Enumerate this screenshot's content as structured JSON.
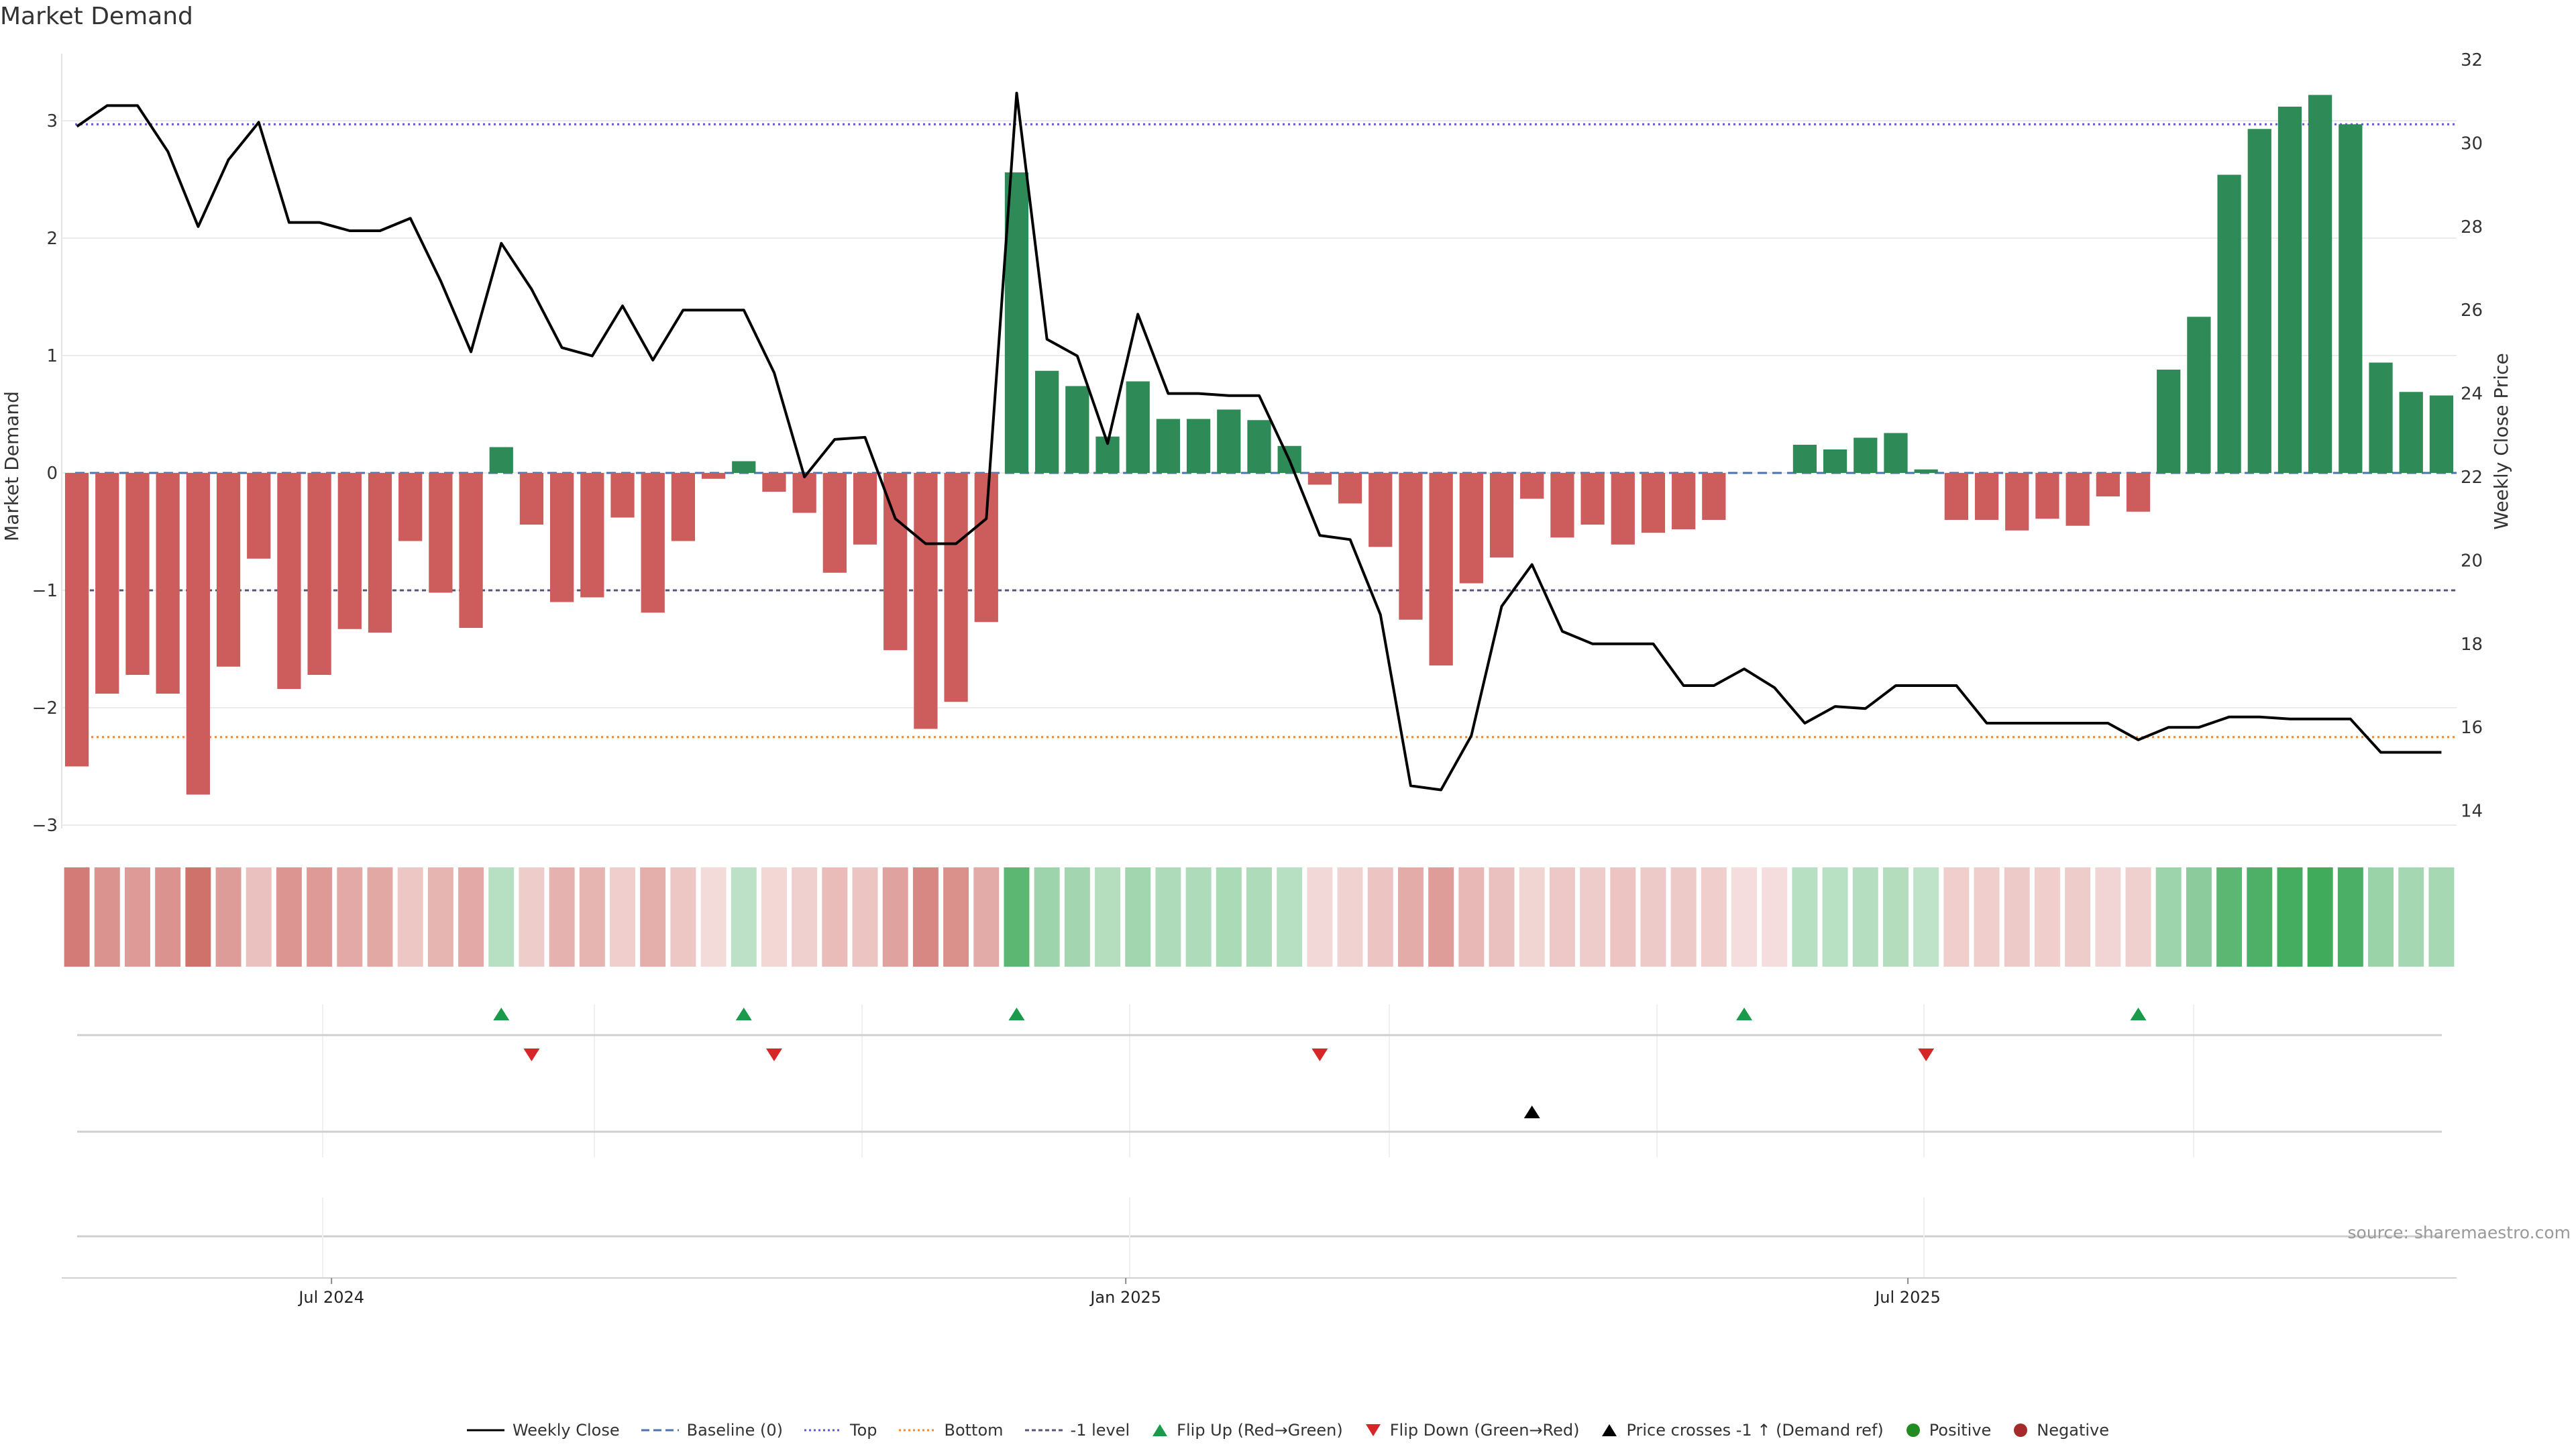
{
  "title": "Market Demand",
  "source": "source: sharemaestro.com",
  "colors": {
    "positive": "#2e8b57",
    "negative": "#cd5c5c",
    "price": "#000000",
    "baseline": "#4c72b0",
    "top": "#5a5acc",
    "bottom": "#ee8833",
    "minus_one": "#555577",
    "flip_up": "#1a9a4a",
    "flip_down": "#d62728",
    "cross": "#000000",
    "dot_positive": "#228b22",
    "dot_negative": "#a52a2a"
  },
  "chart_data": {
    "type": "bar",
    "title": "Market Demand",
    "ylabel": "Market Demand",
    "y2label": "Weekly Close Price",
    "ylim": [
      -3,
      3.4
    ],
    "yticks": [
      3,
      2,
      1,
      0,
      -1,
      -2,
      -3
    ],
    "y2lim": [
      13.4,
      32
    ],
    "y2ticks": [
      32,
      30,
      28,
      26,
      24,
      22,
      20,
      18,
      16,
      14
    ],
    "xticks": [
      {
        "label": "Jul 2024",
        "index": 8.4
      },
      {
        "label": "Jan 2025",
        "index": 34.6
      },
      {
        "label": "Jul 2025",
        "index": 60.4
      }
    ],
    "top_level": 2.97,
    "bottom_level": -2.25,
    "minus_one_level": -1.0,
    "demand": [
      -2.5,
      -1.88,
      -1.72,
      -1.88,
      -2.74,
      -1.65,
      -0.73,
      -1.84,
      -1.72,
      -1.33,
      -1.36,
      -0.58,
      -1.02,
      -1.32,
      0.22,
      -0.44,
      -1.1,
      -1.06,
      -0.38,
      -1.19,
      -0.58,
      -0.05,
      0.1,
      -0.16,
      -0.34,
      -0.85,
      -0.61,
      -1.51,
      -2.18,
      -1.95,
      -1.27,
      2.56,
      0.87,
      0.74,
      0.31,
      0.78,
      0.46,
      0.46,
      0.54,
      0.45,
      0.23,
      -0.1,
      -0.26,
      -0.63,
      -1.25,
      -1.64,
      -0.94,
      -0.72,
      -0.22,
      -0.55,
      -0.44,
      -0.61,
      -0.51,
      -0.48,
      -0.4,
      0.0,
      0.0,
      0.24,
      0.2,
      0.3,
      0.34,
      0.03,
      -0.4,
      -0.4,
      -0.49,
      -0.39,
      -0.45,
      -0.2,
      -0.33,
      0.88,
      1.33,
      2.54,
      2.93,
      3.12,
      3.22,
      2.97,
      0.94,
      0.69,
      0.66
    ],
    "price": [
      30.4,
      30.9,
      30.9,
      29.8,
      28.0,
      29.6,
      30.5,
      28.1,
      28.1,
      27.9,
      27.9,
      28.2,
      26.7,
      25.0,
      27.6,
      26.5,
      25.1,
      24.9,
      26.1,
      24.8,
      26.0,
      26.0,
      26.0,
      24.5,
      22.0,
      22.9,
      22.95,
      21.0,
      20.4,
      20.4,
      21.0,
      31.2,
      25.3,
      24.9,
      22.8,
      25.9,
      24.0,
      24.0,
      23.95,
      23.95,
      22.4,
      20.6,
      20.5,
      18.7,
      14.6,
      14.5,
      15.8,
      18.9,
      19.9,
      18.3,
      18.0,
      18.0,
      18.0,
      17.0,
      17.0,
      17.4,
      16.95,
      16.1,
      16.5,
      16.45,
      17.0,
      17.0,
      17.0,
      16.1,
      16.1,
      16.1,
      16.1,
      16.1,
      15.7,
      16.0,
      16.0,
      16.25,
      16.25,
      16.2,
      16.2,
      16.2,
      15.4,
      15.4,
      15.4
    ],
    "flip_up": [
      14,
      22,
      31,
      55,
      68
    ],
    "flip_down": [
      15,
      23,
      41,
      61
    ],
    "price_cross": [
      48
    ],
    "legend": [
      "Weekly Close",
      "Baseline (0)",
      "Top",
      "Bottom",
      "-1 level",
      "Flip Up (Red→Green)",
      "Flip Down (Green→Red)",
      "Price crosses -1 ↑ (Demand ref)",
      "Positive",
      "Negative"
    ]
  }
}
